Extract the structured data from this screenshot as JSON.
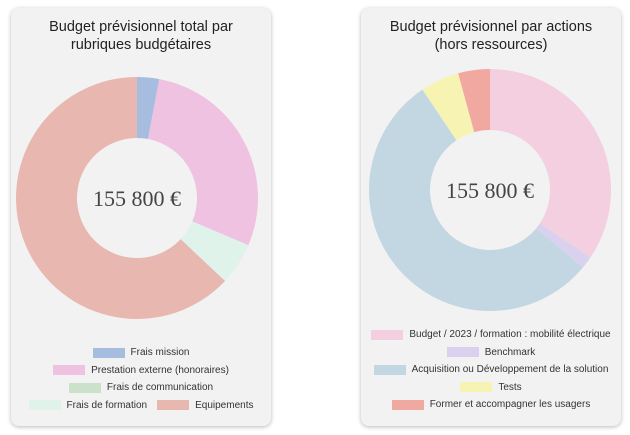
{
  "charts": [
    {
      "title_line1": "Budget prévisionnel total par",
      "title_line2": "rubriques budgétaires",
      "center_label": "155 800 €"
    },
    {
      "title_line1": "Budget prévisionnel par actions",
      "title_line2": "(hors ressources)",
      "center_label": "155 800 €"
    }
  ],
  "chart_data": [
    {
      "type": "pie",
      "title": "Budget prévisionnel total par rubriques budgétaires",
      "center_text": "155 800 €",
      "total": 155800,
      "categories": [
        "Frais mission",
        "Prestation externe (honoraires)",
        "Frais de communication",
        "Frais de formation",
        "Equipements"
      ],
      "values": [
        4600,
        44300,
        0,
        8800,
        98100
      ],
      "colors": [
        "#a7bde0",
        "#f0c2e2",
        "#c9e2c9",
        "#dff3ea",
        "#e8b8b0"
      ],
      "legend": "bottom"
    },
    {
      "type": "pie",
      "title": "Budget prévisionnel par actions (hors ressources)",
      "center_text": "155 800 €",
      "total": 155800,
      "categories": [
        "Budget / 2023 / formation : mobilité électrique",
        "Benchmark",
        "Acquisition ou Développement de la solution",
        "Tests",
        "Former et accompagner les usagers"
      ],
      "values": [
        53600,
        2600,
        84900,
        8100,
        6600
      ],
      "colors": [
        "#f3cfe0",
        "#d9d1ee",
        "#c3d7e2",
        "#f7f3b3",
        "#f0a8a0"
      ],
      "legend": "bottom"
    }
  ]
}
